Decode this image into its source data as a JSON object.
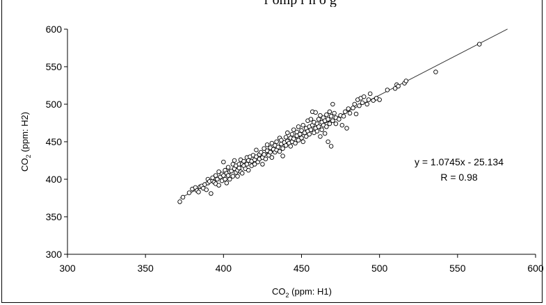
{
  "top_crop_text": "r     omp r    n    o g",
  "chart_data": {
    "type": "scatter",
    "title": "",
    "xlabel": "CO2 (ppm: H1)",
    "ylabel": "CO2 (ppm: H2)",
    "xlim": [
      300,
      600
    ],
    "ylim": [
      300,
      600
    ],
    "x_ticks": [
      "300",
      "350",
      "400",
      "450",
      "500",
      "550",
      "600"
    ],
    "y_ticks": [
      "300",
      "350",
      "400",
      "450",
      "500",
      "550",
      "600"
    ],
    "grid": false,
    "legend": "none",
    "annotations": [
      "y = 1.0745x - 25.134",
      "R = 0.98"
    ],
    "trendline": {
      "slope": 1.0745,
      "intercept": -25.134,
      "x_range": [
        372,
        582
      ]
    },
    "series": [
      {
        "points": [
          [
            372,
            370
          ],
          [
            374,
            376
          ],
          [
            378,
            382
          ],
          [
            380,
            387
          ],
          [
            382,
            389
          ],
          [
            383,
            385
          ],
          [
            384,
            383
          ],
          [
            385,
            390
          ],
          [
            386,
            391
          ],
          [
            387,
            388
          ],
          [
            388,
            393
          ],
          [
            389,
            386
          ],
          [
            390,
            395
          ],
          [
            390,
            400
          ],
          [
            391,
            397
          ],
          [
            392,
            381
          ],
          [
            393,
            398
          ],
          [
            393,
            402
          ],
          [
            394,
            396
          ],
          [
            395,
            405
          ],
          [
            395,
            394
          ],
          [
            396,
            400
          ],
          [
            397,
            410
          ],
          [
            397,
            392
          ],
          [
            398,
            403
          ],
          [
            399,
            407
          ],
          [
            399,
            398
          ],
          [
            400,
            405
          ],
          [
            400,
            423
          ],
          [
            401,
            400
          ],
          [
            401,
            412
          ],
          [
            402,
            408
          ],
          [
            402,
            395
          ],
          [
            403,
            405
          ],
          [
            403,
            416
          ],
          [
            404,
            410
          ],
          [
            404,
            400
          ],
          [
            405,
            411
          ],
          [
            406,
            420
          ],
          [
            406,
            404
          ],
          [
            407,
            414
          ],
          [
            407,
            425
          ],
          [
            408,
            409
          ],
          [
            408,
            418
          ],
          [
            409,
            412
          ],
          [
            409,
            404
          ],
          [
            410,
            420
          ],
          [
            410,
            415
          ],
          [
            411,
            426
          ],
          [
            411,
            410
          ],
          [
            412,
            408
          ],
          [
            412,
            420
          ],
          [
            413,
            418
          ],
          [
            413,
            424
          ],
          [
            414,
            414
          ],
          [
            415,
            429
          ],
          [
            415,
            420
          ],
          [
            416,
            425
          ],
          [
            416,
            412
          ],
          [
            417,
            430
          ],
          [
            418,
            424
          ],
          [
            418,
            418
          ],
          [
            419,
            432
          ],
          [
            420,
            426
          ],
          [
            420,
            420
          ],
          [
            421,
            430
          ],
          [
            421,
            439
          ],
          [
            422,
            423
          ],
          [
            423,
            433
          ],
          [
            423,
            427
          ],
          [
            424,
            436
          ],
          [
            425,
            429
          ],
          [
            425,
            420
          ],
          [
            426,
            441
          ],
          [
            426,
            433
          ],
          [
            427,
            427
          ],
          [
            428,
            438
          ],
          [
            428,
            446
          ],
          [
            429,
            432
          ],
          [
            430,
            442
          ],
          [
            430,
            436
          ],
          [
            431,
            429
          ],
          [
            431,
            448
          ],
          [
            432,
            440
          ],
          [
            433,
            445
          ],
          [
            433,
            436
          ],
          [
            434,
            450
          ],
          [
            434,
            439
          ],
          [
            435,
            443
          ],
          [
            436,
            455
          ],
          [
            436,
            437
          ],
          [
            437,
            447
          ],
          [
            437,
            452
          ],
          [
            438,
            441
          ],
          [
            438,
            431
          ],
          [
            439,
            449
          ],
          [
            440,
            456
          ],
          [
            440,
            445
          ],
          [
            441,
            451
          ],
          [
            441,
            462
          ],
          [
            442,
            448
          ],
          [
            443,
            455
          ],
          [
            443,
            444
          ],
          [
            444,
            460
          ],
          [
            444,
            450
          ],
          [
            445,
            454
          ],
          [
            445,
            466
          ],
          [
            446,
            448
          ],
          [
            447,
            458
          ],
          [
            447,
            463
          ],
          [
            448,
            452
          ],
          [
            448,
            470
          ],
          [
            449,
            460
          ],
          [
            450,
            455
          ],
          [
            450,
            465
          ],
          [
            451,
            472
          ],
          [
            451,
            450
          ],
          [
            452,
            462
          ],
          [
            453,
            468
          ],
          [
            453,
            457
          ],
          [
            454,
            478
          ],
          [
            454,
            464
          ],
          [
            455,
            470
          ],
          [
            455,
            460
          ],
          [
            456,
            480
          ],
          [
            456,
            466
          ],
          [
            457,
            490
          ],
          [
            457,
            472
          ],
          [
            458,
            462
          ],
          [
            458,
            476
          ],
          [
            459,
            468
          ],
          [
            459,
            489
          ],
          [
            460,
            474
          ],
          [
            460,
            464
          ],
          [
            461,
            480
          ],
          [
            461,
            470
          ],
          [
            462,
            457
          ],
          [
            462,
            485
          ],
          [
            463,
            476
          ],
          [
            463,
            466
          ],
          [
            464,
            482
          ],
          [
            464,
            472
          ],
          [
            465,
            461
          ],
          [
            465,
            478
          ],
          [
            466,
            486
          ],
          [
            466,
            470
          ],
          [
            467,
            450
          ],
          [
            467,
            480
          ],
          [
            468,
            490
          ],
          [
            468,
            474
          ],
          [
            469,
            444
          ],
          [
            469,
            484
          ],
          [
            470,
            500
          ],
          [
            470,
            478
          ],
          [
            471,
            488
          ],
          [
            472,
            474
          ],
          [
            472,
            482
          ],
          [
            474,
            480
          ],
          [
            475,
            485
          ],
          [
            476,
            472
          ],
          [
            477,
            484
          ],
          [
            478,
            490
          ],
          [
            479,
            468
          ],
          [
            480,
            494
          ],
          [
            481,
            488
          ],
          [
            483,
            495
          ],
          [
            484,
            500
          ],
          [
            485,
            487
          ],
          [
            486,
            506
          ],
          [
            487,
            498
          ],
          [
            488,
            508
          ],
          [
            489,
            502
          ],
          [
            490,
            510
          ],
          [
            492,
            500
          ],
          [
            493,
            506
          ],
          [
            494,
            514
          ],
          [
            496,
            505
          ],
          [
            498,
            508
          ],
          [
            500,
            506
          ],
          [
            505,
            519
          ],
          [
            510,
            521
          ],
          [
            511,
            526
          ],
          [
            512,
            524
          ],
          [
            516,
            528
          ],
          [
            517,
            531
          ],
          [
            536,
            543
          ],
          [
            564,
            580
          ]
        ]
      }
    ]
  }
}
